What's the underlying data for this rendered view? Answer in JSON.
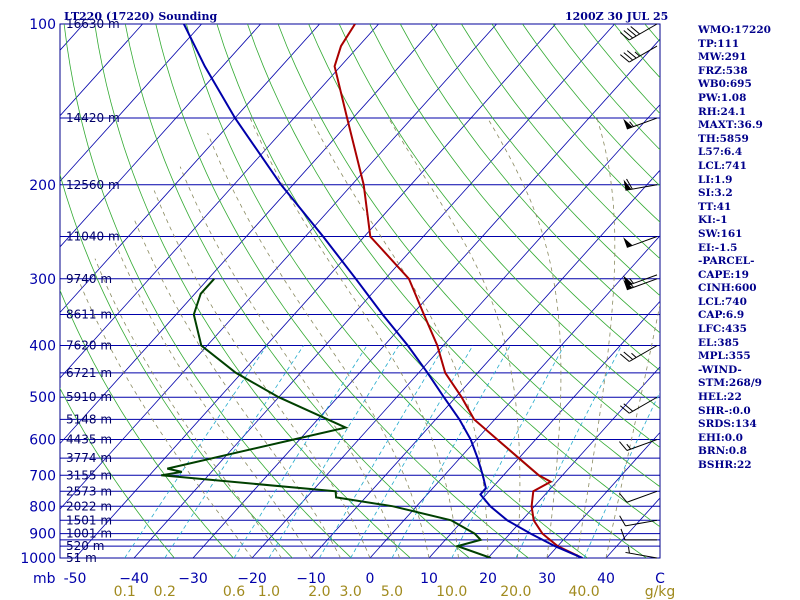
{
  "header": {
    "station": "LT220 (17220) Sounding",
    "datetime": "1200Z 30 JUL 25"
  },
  "indices": [
    "WMO:17220",
    "TP:111",
    "MW:291",
    "FRZ:538",
    "WB0:695",
    "PW:1.08",
    "RH:24.1",
    "MAXT:36.9",
    "TH:5859",
    "L57:6.4",
    "LCL:741",
    "LI:1.9",
    "SI:3.2",
    "TT:41",
    "KI:-1",
    "SW:161",
    "EI:-1.5",
    "-PARCEL-",
    "CAPE:19",
    "CINH:600",
    "LCL:740",
    "CAP:6.9",
    "LFC:435",
    "EL:385",
    "MPL:355",
    "-WIND-",
    "STM:268/9",
    "HEL:22",
    "SHR-:0.0",
    "SRDS:134",
    "EHI:0.0",
    "BRN:0.8",
    "BSHR:22"
  ],
  "chart_data": {
    "type": "line",
    "title": "LT220 (17220) Sounding 1200Z 30 JUL 25",
    "pressure_unit": "mb",
    "mixing_ratio_unit": "g/kg",
    "pressure_labels": [
      100,
      200,
      300,
      400,
      500,
      600,
      700,
      800,
      900,
      1000
    ],
    "pressure_levels": [
      100,
      150,
      200,
      250,
      300,
      350,
      400,
      450,
      500,
      550,
      600,
      650,
      700,
      750,
      800,
      850,
      900,
      925,
      950,
      1000
    ],
    "height_labels": [
      {
        "p": 100,
        "text": "16630 m"
      },
      {
        "p": 150,
        "text": "14420 m"
      },
      {
        "p": 200,
        "text": "12560 m"
      },
      {
        "p": 250,
        "text": "11040 m"
      },
      {
        "p": 300,
        "text": "9740 m"
      },
      {
        "p": 350,
        "text": "8611 m"
      },
      {
        "p": 400,
        "text": "7620 m"
      },
      {
        "p": 450,
        "text": "6721 m"
      },
      {
        "p": 500,
        "text": "5910 m"
      },
      {
        "p": 550,
        "text": "5148 m"
      },
      {
        "p": 600,
        "text": "4435 m"
      },
      {
        "p": 650,
        "text": "3774 m"
      },
      {
        "p": 700,
        "text": "3155 m"
      },
      {
        "p": 750,
        "text": "2573 m"
      },
      {
        "p": 800,
        "text": "2022 m"
      },
      {
        "p": 850,
        "text": "1501 m"
      },
      {
        "p": 900,
        "text": "1001 m"
      },
      {
        "p": 950,
        "text": "520 m"
      },
      {
        "p": 1000,
        "text": "51 m"
      }
    ],
    "temperature_ticks": [
      -50,
      -40,
      -30,
      -20,
      -10,
      0,
      10,
      20,
      30,
      40
    ],
    "temperature_tick_labels": [
      "-50",
      "−40",
      "−30",
      "−20",
      "−10",
      "0",
      "10",
      "20",
      "30",
      "40"
    ],
    "temperature_axis_end_label": "C",
    "mixing_ratio_labels": [
      "0.1",
      "0.2",
      "0.6",
      "1.0",
      "2.0",
      "3.0",
      "5.0",
      "10.0",
      "20.0",
      "40.0"
    ],
    "series": [
      {
        "key": "temperature",
        "color": "#aa0000",
        "points": [
          {
            "p": 1000,
            "t": 36.0
          },
          {
            "p": 950,
            "t": 30.0
          },
          {
            "p": 900,
            "t": 25.5
          },
          {
            "p": 850,
            "t": 22.0
          },
          {
            "p": 800,
            "t": 19.5
          },
          {
            "p": 750,
            "t": 17.5
          },
          {
            "p": 720,
            "t": 19.0
          },
          {
            "p": 700,
            "t": 16.0
          },
          {
            "p": 650,
            "t": 10.0
          },
          {
            "p": 600,
            "t": 3.5
          },
          {
            "p": 550,
            "t": -3.5
          },
          {
            "p": 500,
            "t": -9.0
          },
          {
            "p": 450,
            "t": -15.5
          },
          {
            "p": 400,
            "t": -21.0
          },
          {
            "p": 350,
            "t": -28.0
          },
          {
            "p": 300,
            "t": -36.0
          },
          {
            "p": 250,
            "t": -49.0
          },
          {
            "p": 200,
            "t": -58.0
          },
          {
            "p": 150,
            "t": -71.0
          },
          {
            "p": 120,
            "t": -81.0
          },
          {
            "p": 110,
            "t": -83.0
          },
          {
            "p": 100,
            "t": -84.0
          }
        ]
      },
      {
        "key": "dewpoint",
        "color": "#004000",
        "points": [
          {
            "p": 1000,
            "t": 20.5
          },
          {
            "p": 950,
            "t": 13.0
          },
          {
            "p": 925,
            "t": 16.0
          },
          {
            "p": 900,
            "t": 14.0
          },
          {
            "p": 850,
            "t": 8.0
          },
          {
            "p": 800,
            "t": -4.0
          },
          {
            "p": 770,
            "t": -15.0
          },
          {
            "p": 750,
            "t": -16.0
          },
          {
            "p": 700,
            "t": -48.0
          },
          {
            "p": 690,
            "t": -45.0
          },
          {
            "p": 680,
            "t": -48.0
          },
          {
            "p": 600,
            "t": -31.0
          },
          {
            "p": 570,
            "t": -24.0
          },
          {
            "p": 500,
            "t": -40.0
          },
          {
            "p": 450,
            "t": -51.0
          },
          {
            "p": 400,
            "t": -61.0
          },
          {
            "p": 350,
            "t": -67.0
          },
          {
            "p": 320,
            "t": -69.0
          },
          {
            "p": 300,
            "t": -69.0
          }
        ]
      },
      {
        "key": "parcel",
        "color": "#0000aa",
        "points": [
          {
            "p": 1000,
            "t": 36.0
          },
          {
            "p": 950,
            "t": 29.5
          },
          {
            "p": 900,
            "t": 23.5
          },
          {
            "p": 850,
            "t": 17.5
          },
          {
            "p": 800,
            "t": 12.5
          },
          {
            "p": 760,
            "t": 9.0
          },
          {
            "p": 740,
            "t": 9.0
          },
          {
            "p": 700,
            "t": 6.5
          },
          {
            "p": 650,
            "t": 3.0
          },
          {
            "p": 600,
            "t": -1.0
          },
          {
            "p": 550,
            "t": -6.0
          },
          {
            "p": 500,
            "t": -12.0
          },
          {
            "p": 450,
            "t": -18.5
          },
          {
            "p": 400,
            "t": -26.0
          },
          {
            "p": 350,
            "t": -35.0
          },
          {
            "p": 300,
            "t": -45.0
          },
          {
            "p": 250,
            "t": -57.0
          },
          {
            "p": 200,
            "t": -72.0
          },
          {
            "p": 150,
            "t": -90.0
          },
          {
            "p": 120,
            "t": -103.0
          },
          {
            "p": 100,
            "t": -113.0
          }
        ]
      }
    ],
    "wind_barbs": [
      {
        "p": 1000,
        "dir": 280,
        "kt": 5
      },
      {
        "p": 925,
        "dir": 270,
        "kt": 10
      },
      {
        "p": 850,
        "dir": 260,
        "kt": 10
      },
      {
        "p": 750,
        "dir": 250,
        "kt": 10
      },
      {
        "p": 600,
        "dir": 250,
        "kt": 15
      },
      {
        "p": 500,
        "dir": 240,
        "kt": 20
      },
      {
        "p": 400,
        "dir": 240,
        "kt": 25
      },
      {
        "p": 300,
        "dir": 250,
        "kt": 60
      },
      {
        "p": 295,
        "dir": 250,
        "kt": 55
      },
      {
        "p": 250,
        "dir": 250,
        "kt": 50
      },
      {
        "p": 200,
        "dir": 260,
        "kt": 60
      },
      {
        "p": 150,
        "dir": 250,
        "kt": 55
      },
      {
        "p": 110,
        "dir": 240,
        "kt": 35
      },
      {
        "p": 100,
        "dir": 240,
        "kt": 40
      }
    ],
    "grid": true
  }
}
